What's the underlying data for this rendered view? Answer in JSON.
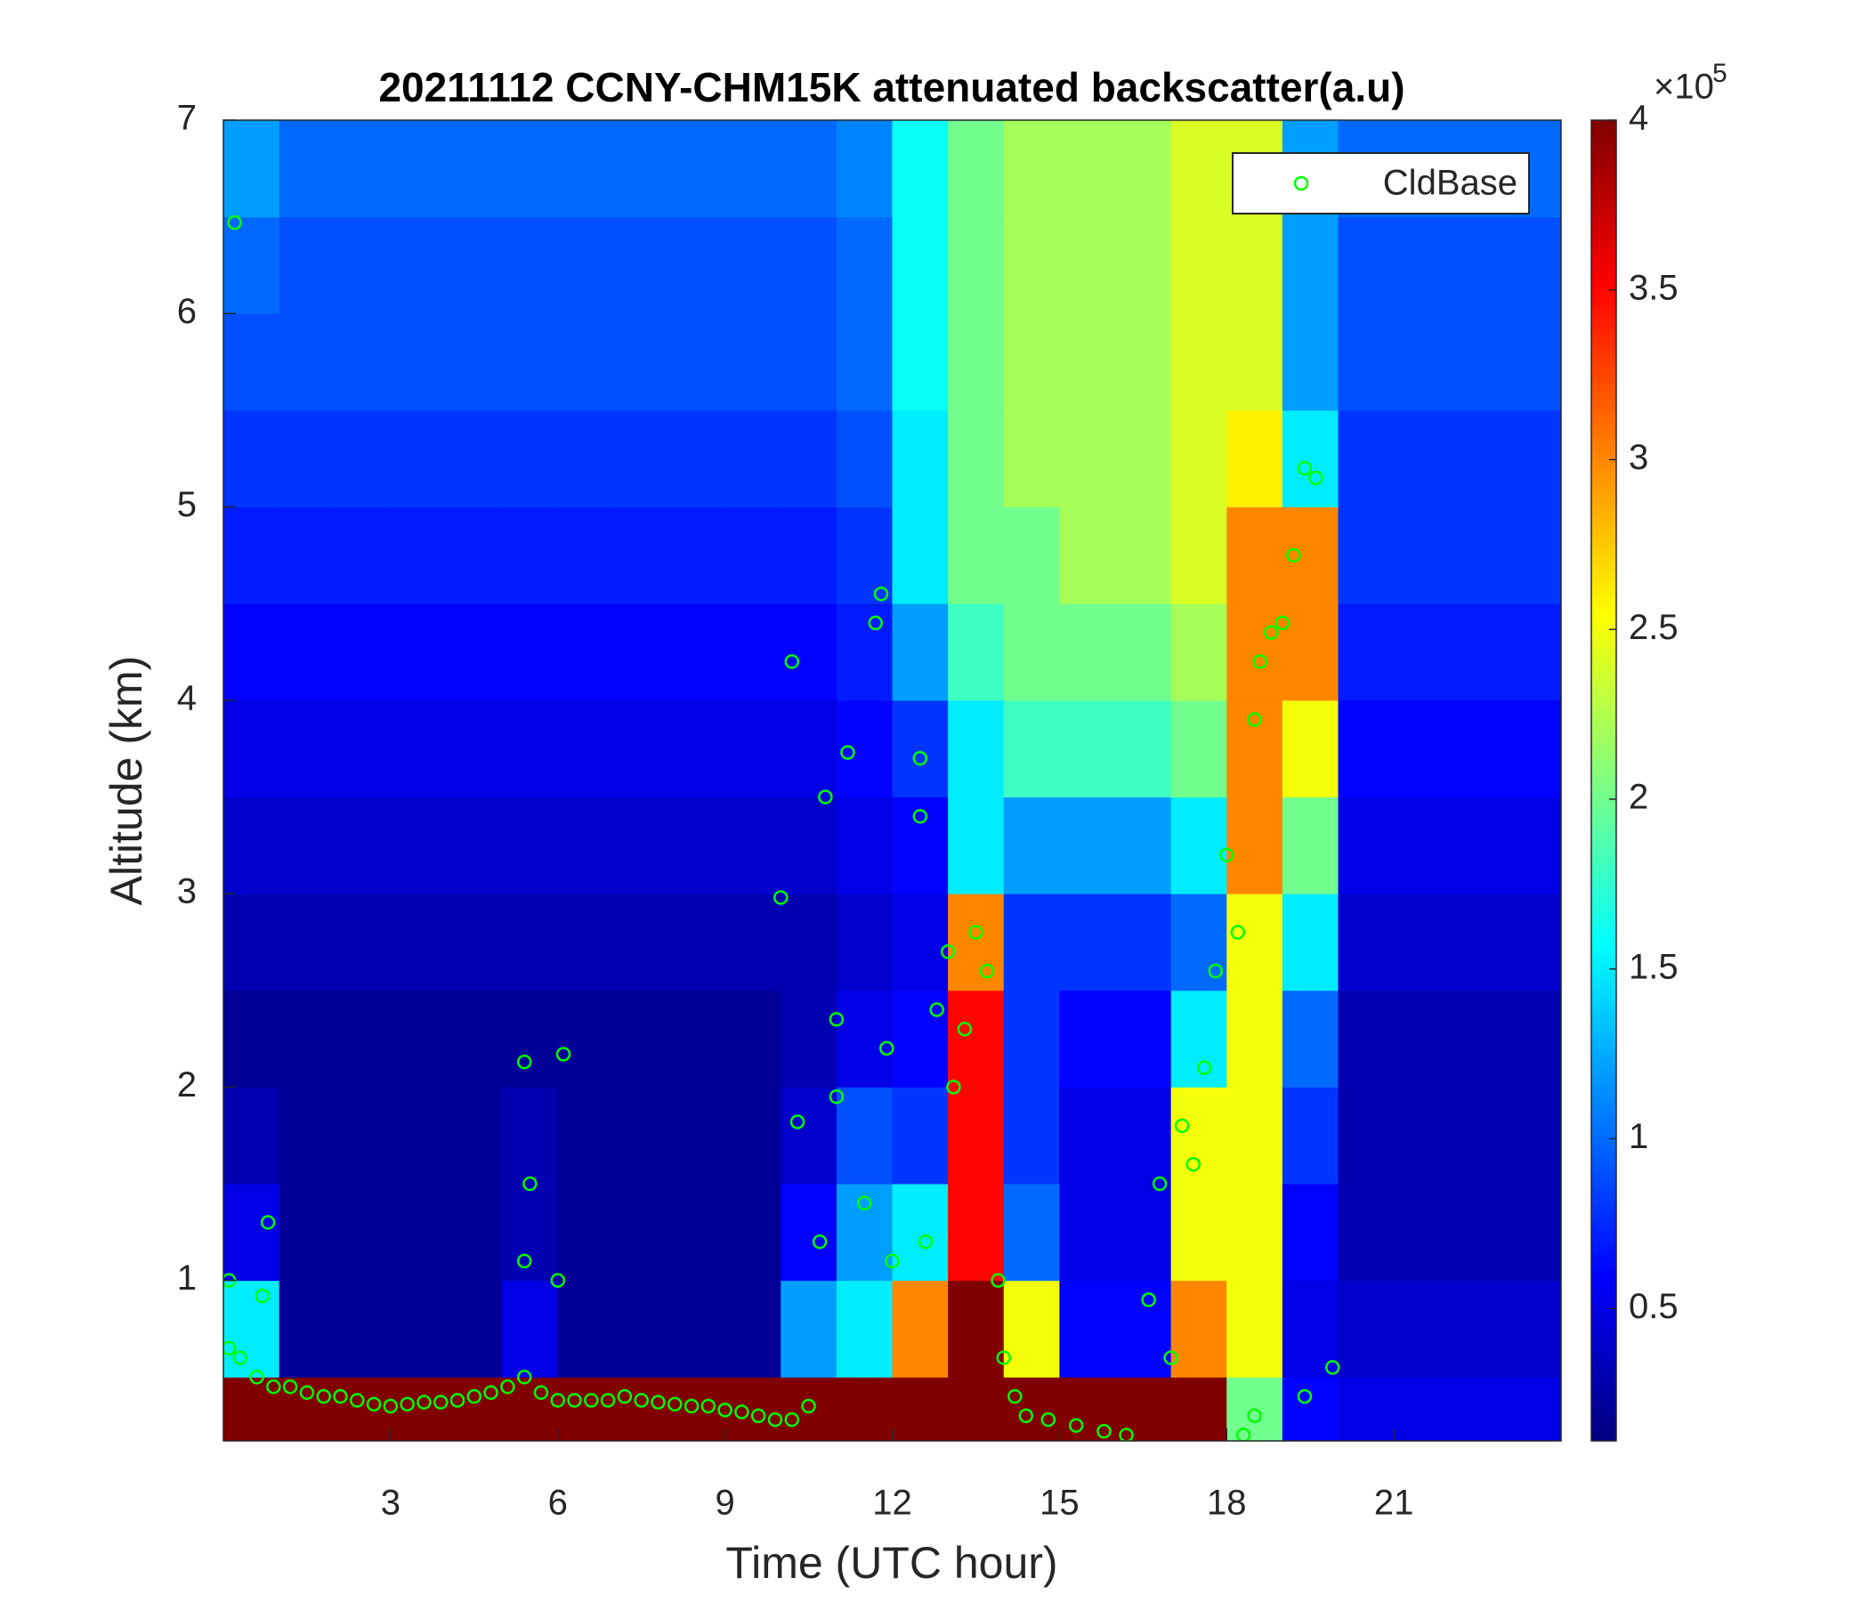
{
  "chart_data": {
    "type": "heatmap",
    "title": "20211112 CCNY-CHM15K attenuated backscatter(a.u)",
    "xlabel": "Time (UTC hour)",
    "ylabel": "Altitude (km)",
    "colormap": "jet",
    "x": [
      0.5,
      1.5,
      2.5,
      3.5,
      4.5,
      5.5,
      6.5,
      7.5,
      8.5,
      9.5,
      10.5,
      11.5,
      12.5,
      13.5,
      14.5,
      15.5,
      16.5,
      17.5,
      18.5,
      19.5,
      20.5,
      21.5,
      22.5,
      23.5
    ],
    "y": [
      0.25,
      0.75,
      1.25,
      1.75,
      2.25,
      2.75,
      3.25,
      3.75,
      4.25,
      4.75,
      5.25,
      5.75,
      6.25,
      6.75
    ],
    "z": [
      [
        4,
        4,
        4,
        4,
        4,
        4,
        4,
        4,
        4,
        4,
        4,
        4,
        4,
        4,
        4,
        4,
        4,
        4,
        2,
        0.6,
        0.5,
        0.5,
        0.5,
        0.5
      ],
      [
        1.5,
        0.2,
        0.2,
        0.2,
        0.2,
        0.5,
        0.2,
        0.2,
        0.2,
        0.2,
        1.2,
        1.5,
        3,
        4,
        2.5,
        0.6,
        0.6,
        3,
        2.5,
        0.5,
        0.4,
        0.4,
        0.4,
        0.4
      ],
      [
        0.5,
        0.2,
        0.2,
        0.2,
        0.2,
        0.3,
        0.2,
        0.2,
        0.2,
        0.2,
        0.6,
        1.2,
        1.5,
        3.5,
        1,
        0.5,
        0.5,
        2.5,
        2.5,
        0.6,
        0.3,
        0.3,
        0.3,
        0.3
      ],
      [
        0.3,
        0.2,
        0.2,
        0.2,
        0.2,
        0.3,
        0.2,
        0.2,
        0.2,
        0.2,
        0.4,
        0.9,
        0.8,
        3.5,
        0.8,
        0.5,
        0.5,
        2.5,
        2.5,
        0.8,
        0.3,
        0.3,
        0.3,
        0.3
      ],
      [
        0.2,
        0.2,
        0.2,
        0.2,
        0.2,
        0.2,
        0.2,
        0.2,
        0.2,
        0.2,
        0.3,
        0.5,
        0.6,
        3.5,
        0.8,
        0.6,
        0.6,
        1.5,
        2.5,
        1,
        0.3,
        0.3,
        0.3,
        0.3
      ],
      [
        0.3,
        0.3,
        0.3,
        0.3,
        0.3,
        0.3,
        0.3,
        0.3,
        0.3,
        0.3,
        0.3,
        0.4,
        0.5,
        3,
        0.8,
        0.8,
        0.8,
        1,
        2.5,
        1.5,
        0.4,
        0.4,
        0.4,
        0.4
      ],
      [
        0.4,
        0.4,
        0.4,
        0.4,
        0.4,
        0.4,
        0.4,
        0.4,
        0.4,
        0.4,
        0.4,
        0.5,
        0.6,
        1.5,
        1.2,
        1.2,
        1.2,
        1.5,
        3,
        2,
        0.5,
        0.5,
        0.5,
        0.5
      ],
      [
        0.5,
        0.5,
        0.5,
        0.5,
        0.5,
        0.5,
        0.5,
        0.5,
        0.5,
        0.5,
        0.5,
        0.6,
        0.8,
        1.5,
        1.8,
        1.8,
        1.8,
        2,
        3,
        2.5,
        0.6,
        0.6,
        0.6,
        0.6
      ],
      [
        0.6,
        0.6,
        0.6,
        0.6,
        0.6,
        0.6,
        0.6,
        0.6,
        0.6,
        0.6,
        0.6,
        0.7,
        1.2,
        1.8,
        2,
        2,
        2,
        2.2,
        3,
        3,
        0.7,
        0.7,
        0.7,
        0.7
      ],
      [
        0.7,
        0.7,
        0.7,
        0.7,
        0.7,
        0.7,
        0.7,
        0.7,
        0.7,
        0.7,
        0.7,
        0.8,
        1.5,
        2,
        2,
        2.2,
        2.2,
        2.4,
        3,
        3,
        0.8,
        0.8,
        0.8,
        0.8
      ],
      [
        0.8,
        0.8,
        0.8,
        0.8,
        0.8,
        0.8,
        0.8,
        0.8,
        0.8,
        0.8,
        0.8,
        0.9,
        1.5,
        2,
        2.2,
        2.2,
        2.2,
        2.4,
        2.6,
        1.5,
        0.8,
        0.8,
        0.8,
        0.8
      ],
      [
        0.9,
        0.9,
        0.9,
        0.9,
        0.9,
        0.9,
        0.9,
        0.9,
        0.9,
        0.9,
        0.9,
        1.0,
        1.6,
        2,
        2.2,
        2.2,
        2.2,
        2.4,
        2.4,
        1.2,
        0.9,
        0.9,
        0.9,
        0.9
      ],
      [
        1.0,
        0.9,
        0.9,
        0.9,
        0.9,
        0.9,
        0.9,
        0.9,
        0.9,
        0.9,
        0.9,
        1.0,
        1.6,
        2,
        2.2,
        2.2,
        2.2,
        2.4,
        2.4,
        1.2,
        0.9,
        0.9,
        0.9,
        0.9
      ],
      [
        1.2,
        1.0,
        1.0,
        1.0,
        1.0,
        1.0,
        1.0,
        1.0,
        1.0,
        1.0,
        1.0,
        1.1,
        1.6,
        2,
        2.2,
        2.2,
        2.2,
        2.4,
        2.4,
        1.2,
        1.0,
        1.0,
        1.0,
        1.0
      ]
    ],
    "xlim": [
      0,
      24
    ],
    "xticks": [
      3,
      6,
      9,
      12,
      15,
      18,
      21
    ],
    "ylim": [
      0.17,
      7
    ],
    "yticks": [
      1,
      2,
      3,
      4,
      5,
      6,
      7
    ],
    "clim": [
      0.11,
      4
    ],
    "cticks": [
      0.5,
      1,
      1.5,
      2,
      2.5,
      3,
      3.5,
      4
    ],
    "colorbar_multiplier": "×10",
    "colorbar_exponent": "5",
    "legend": "upper right",
    "series": [
      {
        "name": "CldBase",
        "type": "scatter",
        "color": "#00ff00",
        "x": [
          0.3,
          0.6,
          0.9,
          1.2,
          1.5,
          1.8,
          2.1,
          2.4,
          2.7,
          3.0,
          3.3,
          3.6,
          3.9,
          4.2,
          4.5,
          4.8,
          5.1,
          5.4,
          5.7,
          6.0,
          6.3,
          6.6,
          6.9,
          7.2,
          7.5,
          7.8,
          8.1,
          8.4,
          8.7,
          9.0,
          9.3,
          9.6,
          9.9,
          10.2,
          10.5,
          0.1,
          0.1,
          0.2,
          0.7,
          0.8,
          5.4,
          5.4,
          5.5,
          6.0,
          6.1,
          10,
          10.2,
          10.3,
          10.7,
          10.8,
          11,
          11.2,
          11,
          11.5,
          11.8,
          11.7,
          11.9,
          12,
          12.5,
          12.5,
          12.6,
          12.8,
          13,
          13.1,
          13.3,
          13.5,
          13.7,
          13.9,
          14,
          14.2,
          14.4,
          14.8,
          15.3,
          15.8,
          16.2,
          16.6,
          16.8,
          17,
          17.2,
          17.4,
          17.6,
          17.8,
          18,
          18.2,
          18.3,
          18.5,
          18.6,
          18.8,
          19,
          19.2,
          19.4,
          19.6,
          19.4,
          19.9,
          18.5
        ],
        "y": [
          0.6,
          0.5,
          0.45,
          0.45,
          0.42,
          0.4,
          0.4,
          0.38,
          0.36,
          0.35,
          0.36,
          0.37,
          0.37,
          0.38,
          0.4,
          0.42,
          0.45,
          0.5,
          0.42,
          0.38,
          0.38,
          0.38,
          0.38,
          0.4,
          0.38,
          0.37,
          0.36,
          0.35,
          0.35,
          0.33,
          0.32,
          0.3,
          0.28,
          0.28,
          0.35,
          0.65,
          1.0,
          6.47,
          0.92,
          1.3,
          2.13,
          1.1,
          1.5,
          1.0,
          2.17,
          2.98,
          4.2,
          1.82,
          1.2,
          3.5,
          1.95,
          3.73,
          2.35,
          1.4,
          4.55,
          4.4,
          2.2,
          1.1,
          3.7,
          3.4,
          1.2,
          2.4,
          2.7,
          2.0,
          2.3,
          2.8,
          2.6,
          1.0,
          0.6,
          0.4,
          0.3,
          0.28,
          0.25,
          0.22,
          0.2,
          0.9,
          1.5,
          0.6,
          1.8,
          1.6,
          2.1,
          2.6,
          3.2,
          2.8,
          0.2,
          3.9,
          4.2,
          4.35,
          4.4,
          4.75,
          5.2,
          5.15,
          0.4,
          0.55,
          0.3
        ]
      }
    ]
  }
}
